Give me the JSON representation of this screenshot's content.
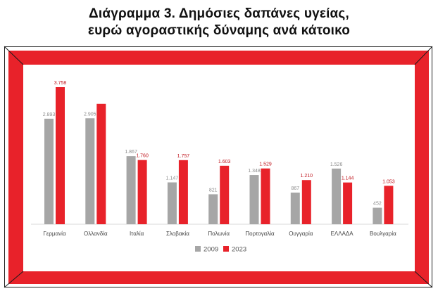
{
  "header": {
    "title_line1": "Διάγραμμα 3. Δημόσιες δαπάνες υγείας,",
    "title_line2": "ευρώ αγοραστικής δύναμης ανά κάτοικο"
  },
  "colors": {
    "frame": "#e8222a",
    "series_2009": "#a6a6a6",
    "series_2023": "#e8222a"
  },
  "chart_data": {
    "type": "bar",
    "categories": [
      "Γερμανία",
      "Ολλανδία",
      "Ιταλία",
      "Σλοβακία",
      "Πολωνία",
      "Πορτογαλία",
      "Ουγγαρία",
      "ΕΛΛΑΔΑ",
      "Βουλγαρία"
    ],
    "series": [
      {
        "name": "2009",
        "values": [
          2893,
          2905,
          1867,
          1147,
          821,
          1348,
          867,
          1526,
          452
        ],
        "labels": [
          "2.893",
          "2.905",
          "1.867",
          "1.147",
          "821",
          "1.348",
          "867",
          "1.526",
          "452"
        ]
      },
      {
        "name": "2023",
        "values": [
          3758,
          3300,
          1760,
          1757,
          1603,
          1529,
          1210,
          1144,
          1053
        ],
        "labels": [
          "3.758",
          "",
          "1.760",
          "1.757",
          "1.603",
          "1.529",
          "1.210",
          "1.144",
          "1.053"
        ]
      }
    ],
    "legend_position": "bottom",
    "grid": false
  }
}
